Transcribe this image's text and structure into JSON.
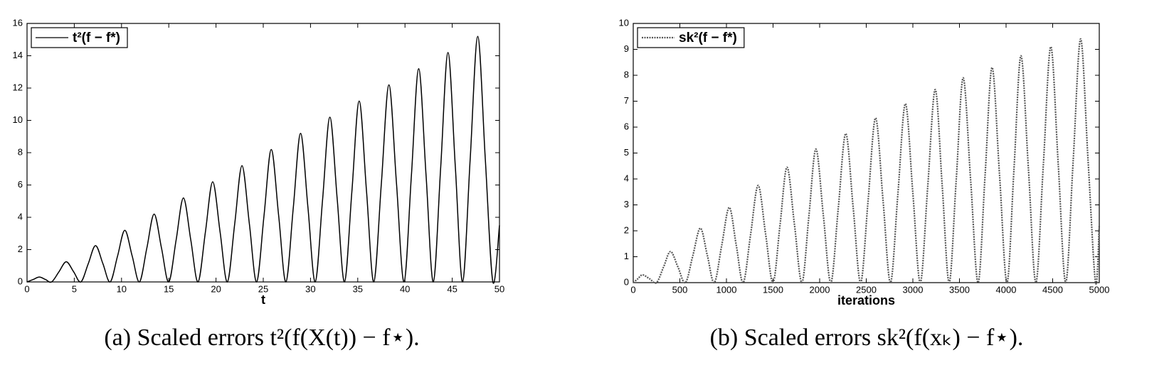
{
  "chart_data": [
    {
      "type": "line",
      "caption": "(a) Scaled errors t²(f(X(t)) − f⋆).",
      "xlabel": "t",
      "xlim": [
        0,
        50
      ],
      "xticks": [
        0,
        5,
        10,
        15,
        20,
        25,
        30,
        35,
        40,
        45,
        50
      ],
      "ylim": [
        0,
        16
      ],
      "yticks": [
        0,
        2,
        4,
        6,
        8,
        10,
        12,
        14,
        16
      ],
      "grid": false,
      "legend": "upper left",
      "series": [
        {
          "name": "t²(f − f*)",
          "color": "#000000",
          "line_style": "solid",
          "x": [
            0,
            0.65,
            1.3,
            1.95,
            2.6,
            3.38,
            4.15,
            4.93,
            5.7,
            6.48,
            7.25,
            8.03,
            8.8,
            9.58,
            10.35,
            11.13,
            11.9,
            12.68,
            13.45,
            14.23,
            15.0,
            15.78,
            16.55,
            17.33,
            18.1,
            18.88,
            19.65,
            20.43,
            21.2,
            21.98,
            22.75,
            23.53,
            24.3,
            25.08,
            25.85,
            26.63,
            27.4,
            28.18,
            28.95,
            29.73,
            30.5,
            31.28,
            32.05,
            32.83,
            33.6,
            34.38,
            35.15,
            35.93,
            36.7,
            37.5,
            38.3,
            39.1,
            39.9,
            40.68,
            41.45,
            42.23,
            43.0,
            43.78,
            44.55,
            45.33,
            46.1,
            46.9,
            47.7,
            48.5,
            49.3,
            50
          ],
          "values": [
            0,
            0.15,
            0.3,
            0.15,
            0,
            0.63,
            1.25,
            0.63,
            0,
            1.13,
            2.25,
            1.13,
            0,
            1.6,
            3.2,
            1.6,
            0,
            2.1,
            4.2,
            2.1,
            0,
            2.6,
            5.2,
            2.6,
            0,
            3.1,
            6.2,
            3.1,
            0,
            3.6,
            7.2,
            3.6,
            0,
            4.1,
            8.2,
            4.1,
            0,
            4.6,
            9.2,
            4.6,
            0,
            5.1,
            10.2,
            5.1,
            0,
            5.6,
            11.2,
            5.6,
            0,
            6.1,
            12.2,
            6.1,
            0,
            6.6,
            13.2,
            6.6,
            0,
            7.1,
            14.2,
            7.1,
            0,
            7.6,
            15.2,
            7.6,
            0,
            3.5
          ]
        }
      ]
    },
    {
      "type": "line",
      "caption": "(b) Scaled errors sk²(f(xₖ) − f⋆).",
      "xlabel": "iterations",
      "xlim": [
        0,
        5000
      ],
      "xticks": [
        0,
        500,
        1000,
        1500,
        2000,
        2500,
        3000,
        3500,
        4000,
        4500,
        5000
      ],
      "ylim": [
        0,
        10
      ],
      "yticks": [
        0,
        1,
        2,
        3,
        4,
        5,
        6,
        7,
        8,
        9,
        10
      ],
      "grid": false,
      "legend": "upper left",
      "series": [
        {
          "name": "sk²(f − f*)",
          "color": "#555555",
          "line_style": "dotted",
          "x": [
            0,
            50,
            100,
            175,
            250,
            325,
            400,
            480,
            560,
            640,
            720,
            795,
            870,
            950,
            1030,
            1105,
            1180,
            1260,
            1340,
            1420,
            1500,
            1575,
            1650,
            1730,
            1810,
            1885,
            1960,
            2040,
            2120,
            2200,
            2280,
            2360,
            2440,
            2520,
            2600,
            2680,
            2760,
            2840,
            2920,
            3000,
            3080,
            3160,
            3240,
            3315,
            3390,
            3465,
            3540,
            3620,
            3700,
            3775,
            3850,
            3930,
            4010,
            4085,
            4160,
            4240,
            4320,
            4400,
            4480,
            4560,
            4640,
            4720,
            4800,
            4880,
            4960,
            5000
          ],
          "values": [
            0,
            0.15,
            0.3,
            0.15,
            0,
            0.6,
            1.2,
            0.6,
            0,
            1.05,
            2.1,
            1.05,
            0,
            1.45,
            2.9,
            1.45,
            0,
            1.88,
            3.75,
            1.88,
            0,
            2.23,
            4.45,
            2.23,
            0,
            2.58,
            5.15,
            2.58,
            0,
            2.88,
            5.75,
            2.88,
            0,
            3.18,
            6.35,
            3.18,
            0,
            3.45,
            6.9,
            3.45,
            0,
            3.73,
            7.45,
            3.73,
            0,
            3.95,
            7.9,
            3.95,
            0,
            4.15,
            8.3,
            4.15,
            0,
            4.38,
            8.75,
            4.38,
            0,
            4.55,
            9.1,
            4.55,
            0,
            4.7,
            9.4,
            4.7,
            0,
            2.2
          ]
        }
      ]
    }
  ]
}
